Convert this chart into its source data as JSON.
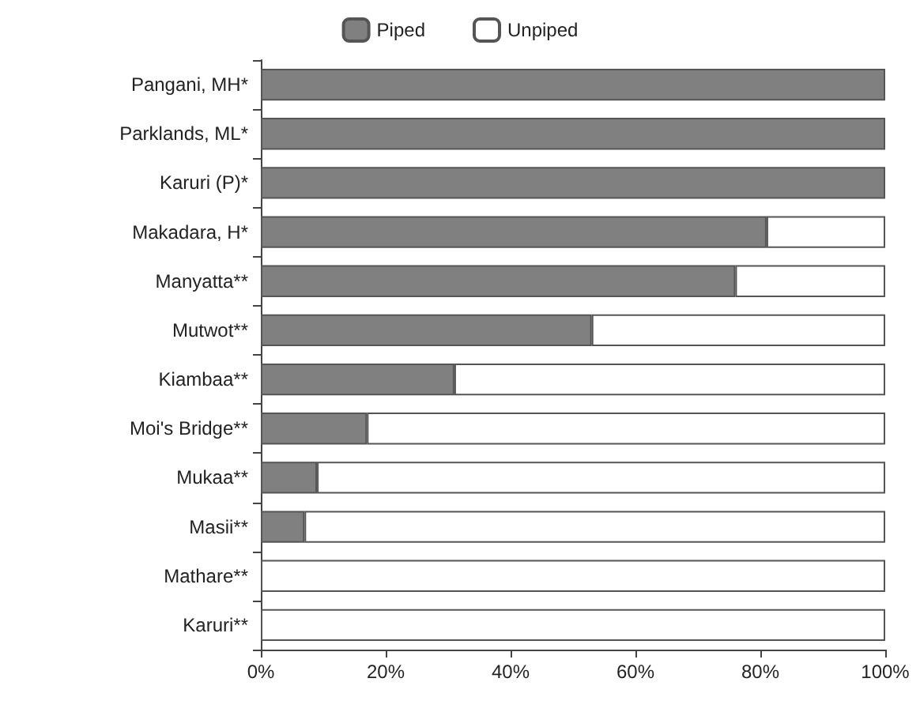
{
  "chart_data": {
    "type": "bar",
    "orientation": "horizontal",
    "stacked": true,
    "categories": [
      "Pangani, MH*",
      "Parklands, ML*",
      "Karuri (P)*",
      "Makadara, H*",
      "Manyatta**",
      "Mutwot**",
      "Kiambaa**",
      "Moi's Bridge**",
      "Mukaa**",
      "Masii**",
      "Mathare**",
      "Karuri**"
    ],
    "series": [
      {
        "name": "Piped",
        "color": "#808080",
        "values": [
          100,
          100,
          100,
          81,
          76,
          53,
          31,
          17,
          9,
          7,
          0,
          0
        ]
      },
      {
        "name": "Unpiped",
        "color": "#ffffff",
        "values": [
          0,
          0,
          0,
          19,
          24,
          47,
          69,
          83,
          91,
          93,
          100,
          100
        ]
      }
    ],
    "xlim": [
      0,
      100
    ],
    "xticks": [
      {
        "value": 0,
        "label": "0%"
      },
      {
        "value": 20,
        "label": "20%"
      },
      {
        "value": 40,
        "label": "40%"
      },
      {
        "value": 60,
        "label": "60%"
      },
      {
        "value": 80,
        "label": "80%"
      },
      {
        "value": 100,
        "label": "100%"
      }
    ],
    "legend": "top",
    "grid": false
  }
}
